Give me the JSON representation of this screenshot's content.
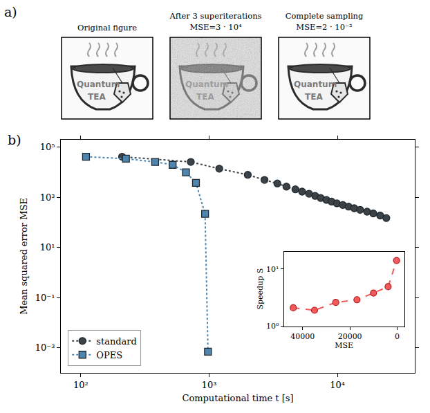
{
  "panel_a": {
    "label": "a)",
    "images": [
      {
        "title": "Original figure",
        "noisy": false
      },
      {
        "title": "After 3 superiterations",
        "subtitle": "MSE=3 · 10⁴",
        "noisy": true
      },
      {
        "title": "Complete sampling",
        "subtitle": "MSE=2 · 10⁻²",
        "noisy": false
      }
    ],
    "cup_texts": [
      "Quantum",
      "TEA"
    ]
  },
  "chart_data": {
    "type": "scatter",
    "panel_label": "b)",
    "x_label": "Computational time t [s]",
    "y_label": "Mean squared error MSE",
    "log": true,
    "grid": false,
    "legend": "lower left",
    "xlim": [
      70,
      40000
    ],
    "ylim": [
      0.0001,
      200000
    ],
    "xticks": [
      {
        "value": 100,
        "label": "10²"
      },
      {
        "value": 1000,
        "label": "10³"
      },
      {
        "value": 10000,
        "label": "10⁴"
      }
    ],
    "yticks": [
      {
        "value": 100000,
        "label": "10⁵"
      },
      {
        "value": 1000,
        "label": "10³"
      },
      {
        "value": 10,
        "label": "10¹"
      },
      {
        "value": 0.1,
        "label": "10⁻¹"
      },
      {
        "value": 0.001,
        "label": "10⁻³"
      }
    ],
    "series": [
      {
        "name": "standard",
        "color": "#3d4247",
        "marker": "circle",
        "line_style": "dotted",
        "x": [
          210,
          720,
          1200,
          2000,
          2700,
          3400,
          4000,
          4700,
          5300,
          6000,
          6700,
          7400,
          8200,
          9000,
          9900,
          11000,
          12200,
          13500,
          15000,
          17000,
          19000,
          21500,
          24000
        ],
        "values": [
          42000,
          26000,
          14000,
          8000,
          5000,
          3600,
          2700,
          2100,
          1700,
          1400,
          1150,
          950,
          800,
          680,
          580,
          500,
          430,
          370,
          320,
          270,
          230,
          190,
          150
        ]
      },
      {
        "name": "OPES",
        "color": "#4f86b0",
        "marker": "square",
        "line_style": "dotted",
        "x": [
          110,
          225,
          380,
          520,
          660,
          790,
          930,
          980
        ],
        "values": [
          42000,
          35000,
          26000,
          20000,
          10000,
          3800,
          220,
          0.0007
        ]
      }
    ],
    "inset": {
      "type": "scatter",
      "x_label": "MSE",
      "y_label": "Speedup S",
      "log": "y",
      "grid": false,
      "xlim": [
        48000,
        -3000
      ],
      "ylim": [
        1,
        20
      ],
      "xticks": [
        40000,
        20000,
        0
      ],
      "yticks": [
        {
          "value": 1,
          "label": "10⁰"
        },
        {
          "value": 10,
          "label": "10¹"
        }
      ],
      "series": [
        {
          "name": "Speedup",
          "color": "#f05a5a",
          "marker": "circle",
          "line_style": "dashed",
          "x": [
            44000,
            35000,
            26000,
            17000,
            10000,
            3800,
            220
          ],
          "values": [
            2.1,
            1.9,
            2.6,
            2.9,
            3.8,
            4.9,
            14
          ]
        }
      ]
    }
  }
}
